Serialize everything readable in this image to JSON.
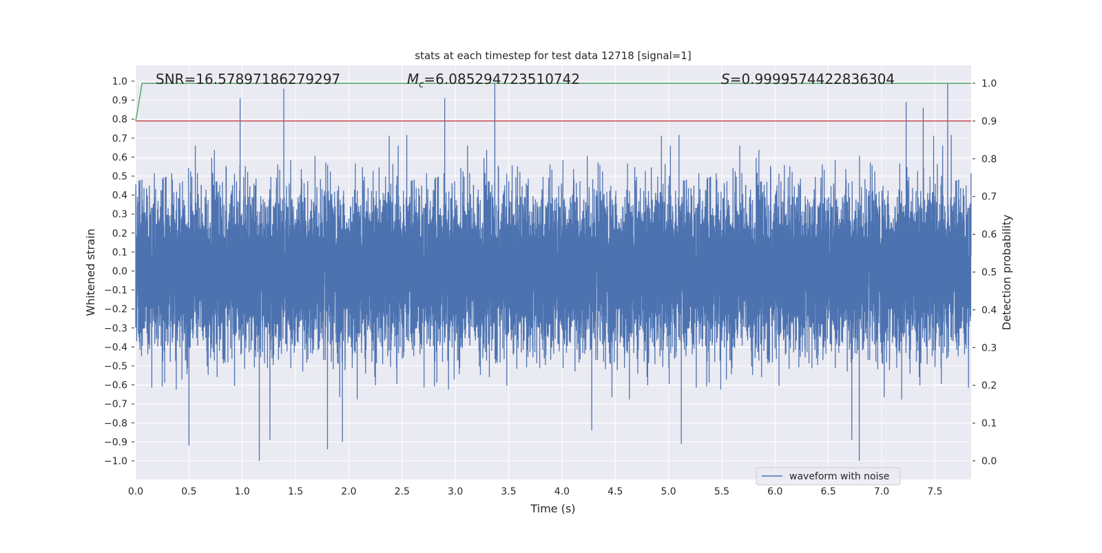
{
  "chart_data": {
    "type": "line",
    "title": "stats at each timestep for test data 12718 [signal=1]",
    "xlabel": "Time (s)",
    "ylabel": "Whitened strain",
    "y2label": "Detection probability",
    "xlim": [
      0,
      7.84
    ],
    "ylim": [
      -1.1,
      1.08
    ],
    "y2lim": [
      -0.05,
      1.04
    ],
    "xticks": [
      "0.0",
      "0.5",
      "1.0",
      "1.5",
      "2.0",
      "2.5",
      "3.0",
      "3.5",
      "4.0",
      "4.5",
      "5.0",
      "5.5",
      "6.0",
      "6.5",
      "7.0",
      "7.5"
    ],
    "xtick_values": [
      0,
      0.5,
      1,
      1.5,
      2,
      2.5,
      3,
      3.5,
      4,
      4.5,
      5,
      5.5,
      6,
      6.5,
      7,
      7.5
    ],
    "yticks": [
      "1.0",
      "0.9",
      "0.8",
      "0.7",
      "0.6",
      "0.5",
      "0.4",
      "0.3",
      "0.2",
      "0.1",
      "0.0",
      "−0.1",
      "−0.2",
      "−0.3",
      "−0.4",
      "−0.5",
      "−0.6",
      "−0.7",
      "−0.8",
      "−0.9",
      "−1.0"
    ],
    "ytick_values": [
      1,
      0.9,
      0.8,
      0.7,
      0.6,
      0.5,
      0.4,
      0.3,
      0.2,
      0.1,
      0,
      -0.1,
      -0.2,
      -0.3,
      -0.4,
      -0.5,
      -0.6,
      -0.7,
      -0.8,
      -0.9,
      -1.0
    ],
    "y2ticks": [
      "1.0",
      "0.9",
      "0.8",
      "0.7",
      "0.6",
      "0.5",
      "0.4",
      "0.3",
      "0.2",
      "0.1",
      "0.0"
    ],
    "y2tick_values": [
      1,
      0.9,
      0.8,
      0.7,
      0.6,
      0.5,
      0.4,
      0.3,
      0.2,
      0.1,
      0
    ],
    "grid": true,
    "annotations": {
      "snr": "SNR=16.57897186279297",
      "mc_symbol": "M",
      "mc_sub": "c",
      "mc_value": "=6.085294723510742",
      "s_symbol": "S",
      "s_value": "=0.9999574422836304"
    },
    "series": [
      {
        "name": "waveform with noise",
        "axis": "left",
        "color": "#4c72b0",
        "noise_std": 0.2,
        "sample_rate": 2048,
        "peaks": [
          [
            0.98,
            0.91
          ],
          [
            1.39,
            0.96
          ],
          [
            2.9,
            0.91
          ],
          [
            3.37,
            0.99
          ],
          [
            7.62,
            0.99
          ],
          [
            7.39,
            0.86
          ],
          [
            7.23,
            0.89
          ],
          [
            0.5,
            -0.92
          ],
          [
            1.16,
            -1.0
          ],
          [
            1.26,
            -0.89
          ],
          [
            1.8,
            -0.94
          ],
          [
            1.94,
            -0.9
          ],
          [
            4.28,
            -0.84
          ],
          [
            5.12,
            -0.91
          ],
          [
            6.79,
            -1.0
          ],
          [
            6.72,
            -0.89
          ]
        ]
      },
      {
        "name": "detection probability",
        "axis": "right",
        "color": "#55a868",
        "x": [
          0,
          0.06,
          7.84
        ],
        "y": [
          0.9,
          0.9996,
          0.9996
        ]
      },
      {
        "name": "threshold",
        "axis": "right",
        "color": "#c44e52",
        "x": [
          0,
          7.84
        ],
        "y": [
          0.9,
          0.9
        ]
      }
    ],
    "legend": {
      "entries": [
        "waveform with noise"
      ],
      "placement": "lower-right"
    }
  }
}
